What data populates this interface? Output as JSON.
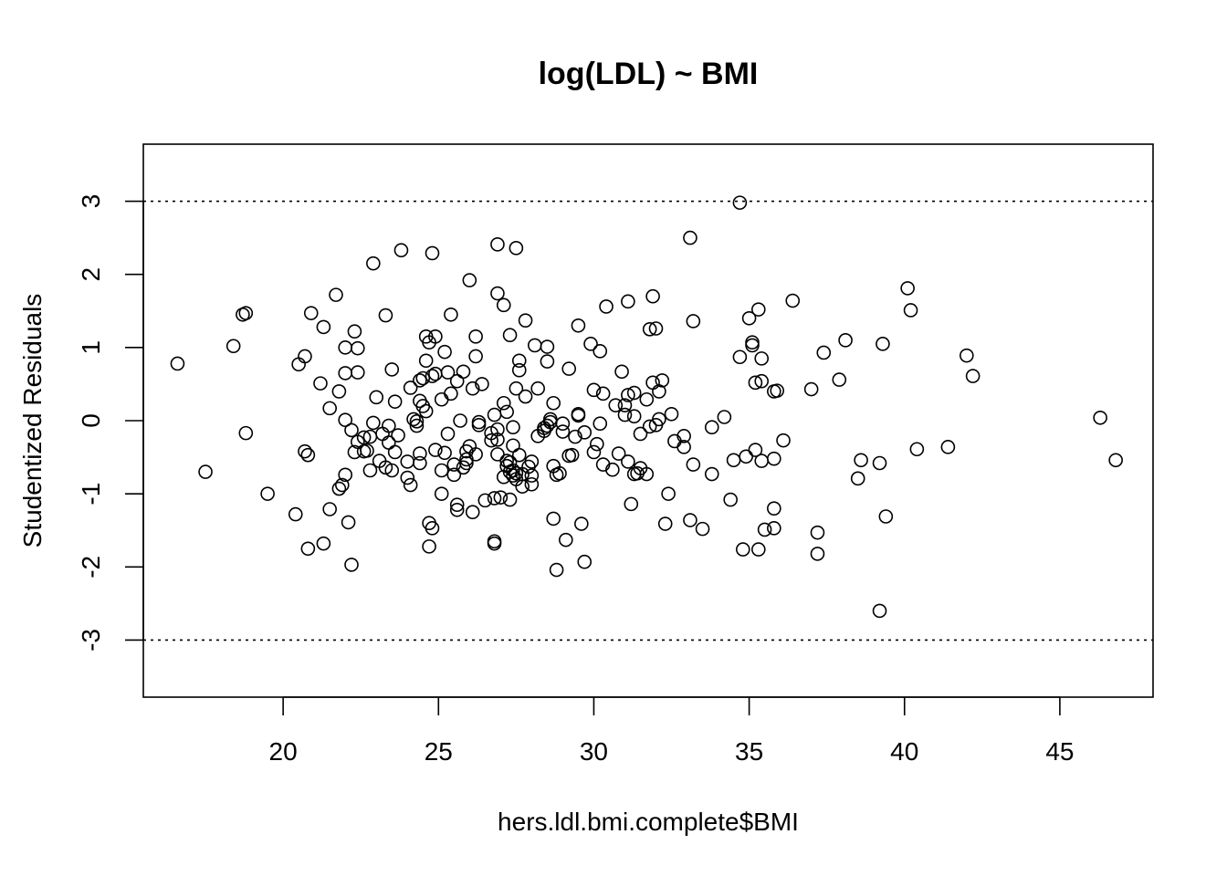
{
  "chart_data": {
    "type": "scatter",
    "title": "log(LDL) ~ BMI",
    "xlabel": "hers.ldl.bmi.complete$BMI",
    "ylabel": "Studentized Residuals",
    "xlim": [
      15.5,
      48.0
    ],
    "ylim": [
      -3.78,
      3.78
    ],
    "x_ticks": [
      20,
      25,
      30,
      35,
      40,
      45
    ],
    "y_ticks": [
      -3,
      -2,
      -1,
      0,
      1,
      2,
      3
    ],
    "reference_lines": [
      3,
      -3
    ],
    "grid": false,
    "marker": "open-circle",
    "points": [
      [
        16.6,
        0.78
      ],
      [
        17.5,
        -0.7
      ],
      [
        18.4,
        1.02
      ],
      [
        18.7,
        1.45
      ],
      [
        18.8,
        1.47
      ],
      [
        18.8,
        -0.17
      ],
      [
        19.5,
        -1.0
      ],
      [
        20.4,
        -1.28
      ],
      [
        20.5,
        0.77
      ],
      [
        20.7,
        0.88
      ],
      [
        20.7,
        -0.42
      ],
      [
        20.8,
        -0.47
      ],
      [
        20.8,
        -1.75
      ],
      [
        20.9,
        1.47
      ],
      [
        21.2,
        0.51
      ],
      [
        21.3,
        1.28
      ],
      [
        21.3,
        -1.68
      ],
      [
        21.5,
        0.17
      ],
      [
        21.5,
        -1.21
      ],
      [
        21.7,
        1.72
      ],
      [
        21.8,
        0.4
      ],
      [
        21.8,
        -0.93
      ],
      [
        21.9,
        -0.88
      ],
      [
        22.0,
        1.0
      ],
      [
        22.0,
        0.65
      ],
      [
        22.0,
        0.01
      ],
      [
        22.0,
        -0.74
      ],
      [
        22.1,
        -1.39
      ],
      [
        22.2,
        -0.13
      ],
      [
        22.2,
        -1.97
      ],
      [
        22.3,
        1.22
      ],
      [
        22.3,
        -0.43
      ],
      [
        22.4,
        0.99
      ],
      [
        22.4,
        0.66
      ],
      [
        22.4,
        -0.29
      ],
      [
        22.6,
        -0.23
      ],
      [
        22.6,
        -0.42
      ],
      [
        22.7,
        -0.41
      ],
      [
        22.8,
        -0.22
      ],
      [
        22.8,
        -0.68
      ],
      [
        22.9,
        2.15
      ],
      [
        22.9,
        -0.03
      ],
      [
        23.0,
        0.32
      ],
      [
        23.1,
        -0.55
      ],
      [
        23.2,
        -0.18
      ],
      [
        23.3,
        -0.64
      ],
      [
        23.3,
        1.44
      ],
      [
        23.4,
        -0.3
      ],
      [
        23.4,
        -0.07
      ],
      [
        23.5,
        0.7
      ],
      [
        23.5,
        -0.68
      ],
      [
        23.6,
        -0.43
      ],
      [
        23.6,
        0.26
      ],
      [
        23.7,
        -0.2
      ],
      [
        23.8,
        2.33
      ],
      [
        24.0,
        -0.78
      ],
      [
        24.0,
        -0.56
      ],
      [
        24.1,
        0.45
      ],
      [
        24.1,
        -0.88
      ],
      [
        24.2,
        0.02
      ],
      [
        24.3,
        -0.01
      ],
      [
        24.3,
        -0.07
      ],
      [
        24.4,
        0.55
      ],
      [
        24.4,
        -0.45
      ],
      [
        24.4,
        -0.58
      ],
      [
        24.4,
        0.27
      ],
      [
        24.5,
        0.58
      ],
      [
        24.5,
        0.2
      ],
      [
        24.6,
        0.82
      ],
      [
        24.6,
        0.13
      ],
      [
        24.6,
        1.15
      ],
      [
        24.7,
        1.07
      ],
      [
        24.7,
        -1.4
      ],
      [
        24.7,
        -1.72
      ],
      [
        24.8,
        2.29
      ],
      [
        24.8,
        -1.47
      ],
      [
        24.8,
        0.61
      ],
      [
        24.9,
        -0.4
      ],
      [
        24.9,
        1.15
      ],
      [
        24.9,
        0.64
      ],
      [
        25.1,
        0.29
      ],
      [
        25.1,
        -0.68
      ],
      [
        25.1,
        -1.0
      ],
      [
        25.2,
        0.94
      ],
      [
        25.2,
        -0.44
      ],
      [
        25.3,
        -0.18
      ],
      [
        25.3,
        0.66
      ],
      [
        25.4,
        1.45
      ],
      [
        25.4,
        0.37
      ],
      [
        25.5,
        -0.6
      ],
      [
        25.5,
        -0.74
      ],
      [
        25.6,
        0.54
      ],
      [
        25.6,
        -1.15
      ],
      [
        25.6,
        -1.22
      ],
      [
        25.7,
        0.0
      ],
      [
        25.8,
        0.67
      ],
      [
        25.8,
        -0.64
      ],
      [
        25.9,
        -0.42
      ],
      [
        25.9,
        -0.58
      ],
      [
        25.9,
        -0.53
      ],
      [
        26.0,
        -0.35
      ],
      [
        26.0,
        1.92
      ],
      [
        26.1,
        0.44
      ],
      [
        26.1,
        -1.25
      ],
      [
        26.2,
        0.88
      ],
      [
        26.2,
        -0.46
      ],
      [
        26.2,
        1.15
      ],
      [
        26.3,
        -0.06
      ],
      [
        26.3,
        -0.02
      ],
      [
        26.4,
        0.5
      ],
      [
        26.5,
        -1.09
      ],
      [
        26.7,
        -0.17
      ],
      [
        26.7,
        -0.27
      ],
      [
        26.8,
        0.08
      ],
      [
        26.8,
        -1.68
      ],
      [
        26.8,
        -1.65
      ],
      [
        26.8,
        -1.06
      ],
      [
        26.9,
        2.41
      ],
      [
        26.9,
        1.74
      ],
      [
        26.9,
        -0.46
      ],
      [
        26.9,
        -0.12
      ],
      [
        26.9,
        -0.26
      ],
      [
        27.0,
        -1.05
      ],
      [
        27.1,
        1.58
      ],
      [
        27.1,
        0.24
      ],
      [
        27.1,
        -0.77
      ],
      [
        27.2,
        -0.55
      ],
      [
        27.2,
        0.12
      ],
      [
        27.2,
        -0.62
      ],
      [
        27.3,
        1.17
      ],
      [
        27.3,
        -1.08
      ],
      [
        27.3,
        -0.57
      ],
      [
        27.3,
        -0.7
      ],
      [
        27.4,
        -0.34
      ],
      [
        27.4,
        -0.75
      ],
      [
        27.4,
        -0.68
      ],
      [
        27.4,
        -0.09
      ],
      [
        27.5,
        -0.72
      ],
      [
        27.5,
        -0.8
      ],
      [
        27.5,
        0.44
      ],
      [
        27.5,
        2.36
      ],
      [
        27.6,
        0.82
      ],
      [
        27.6,
        0.69
      ],
      [
        27.6,
        -0.47
      ],
      [
        27.7,
        -0.73
      ],
      [
        27.7,
        -0.9
      ],
      [
        27.8,
        0.33
      ],
      [
        27.8,
        1.37
      ],
      [
        27.9,
        -0.63
      ],
      [
        28.0,
        -0.56
      ],
      [
        28.0,
        -0.75
      ],
      [
        28.0,
        -0.87
      ],
      [
        28.1,
        1.03
      ],
      [
        28.2,
        0.44
      ],
      [
        28.2,
        -0.21
      ],
      [
        28.4,
        -0.1
      ],
      [
        28.4,
        -0.14
      ],
      [
        28.5,
        1.01
      ],
      [
        28.5,
        0.81
      ],
      [
        28.5,
        -0.07
      ],
      [
        28.6,
        -0.02
      ],
      [
        28.6,
        0.02
      ],
      [
        28.7,
        0.24
      ],
      [
        28.7,
        -0.62
      ],
      [
        28.7,
        -1.34
      ],
      [
        28.8,
        -0.74
      ],
      [
        28.8,
        -2.04
      ],
      [
        28.9,
        -0.72
      ],
      [
        29.0,
        -0.04
      ],
      [
        29.0,
        -0.15
      ],
      [
        29.1,
        -1.63
      ],
      [
        29.2,
        -0.48
      ],
      [
        29.2,
        0.71
      ],
      [
        29.3,
        -0.47
      ],
      [
        29.4,
        -0.22
      ],
      [
        29.5,
        0.07
      ],
      [
        29.5,
        0.09
      ],
      [
        29.5,
        1.3
      ],
      [
        29.6,
        -1.41
      ],
      [
        29.7,
        -1.93
      ],
      [
        29.7,
        -0.16
      ],
      [
        29.9,
        1.05
      ],
      [
        30.0,
        0.42
      ],
      [
        30.0,
        -0.43
      ],
      [
        30.1,
        -0.32
      ],
      [
        30.2,
        0.95
      ],
      [
        30.2,
        -0.04
      ],
      [
        30.3,
        0.37
      ],
      [
        30.3,
        -0.6
      ],
      [
        30.4,
        1.56
      ],
      [
        30.6,
        -0.67
      ],
      [
        30.7,
        0.21
      ],
      [
        30.8,
        -0.45
      ],
      [
        30.9,
        0.67
      ],
      [
        31.0,
        0.08
      ],
      [
        31.0,
        0.21
      ],
      [
        31.1,
        1.63
      ],
      [
        31.1,
        -0.56
      ],
      [
        31.1,
        0.35
      ],
      [
        31.2,
        -1.14
      ],
      [
        31.3,
        -0.73
      ],
      [
        31.3,
        0.06
      ],
      [
        31.3,
        0.38
      ],
      [
        31.4,
        -0.72
      ],
      [
        31.5,
        -0.65
      ],
      [
        31.5,
        -0.18
      ],
      [
        31.7,
        -0.73
      ],
      [
        31.7,
        0.29
      ],
      [
        31.8,
        1.25
      ],
      [
        31.8,
        -0.08
      ],
      [
        31.9,
        0.52
      ],
      [
        31.9,
        1.7
      ],
      [
        32.0,
        -0.06
      ],
      [
        32.0,
        1.26
      ],
      [
        32.1,
        0.4
      ],
      [
        32.1,
        0.02
      ],
      [
        32.2,
        0.55
      ],
      [
        32.3,
        -1.41
      ],
      [
        32.4,
        -1.0
      ],
      [
        32.5,
        0.09
      ],
      [
        32.6,
        -0.28
      ],
      [
        32.9,
        -0.21
      ],
      [
        32.9,
        -0.36
      ],
      [
        33.1,
        2.5
      ],
      [
        33.1,
        -1.36
      ],
      [
        33.2,
        1.36
      ],
      [
        33.2,
        -0.6
      ],
      [
        33.5,
        -1.48
      ],
      [
        33.8,
        -0.09
      ],
      [
        33.8,
        -0.73
      ],
      [
        34.2,
        0.05
      ],
      [
        34.4,
        -1.08
      ],
      [
        34.5,
        -0.54
      ],
      [
        34.7,
        2.98
      ],
      [
        34.7,
        0.87
      ],
      [
        34.8,
        -1.76
      ],
      [
        34.9,
        -0.49
      ],
      [
        35.0,
        1.4
      ],
      [
        35.1,
        1.07
      ],
      [
        35.1,
        1.03
      ],
      [
        35.2,
        -0.4
      ],
      [
        35.2,
        0.52
      ],
      [
        35.3,
        1.52
      ],
      [
        35.3,
        -1.76
      ],
      [
        35.4,
        -0.55
      ],
      [
        35.4,
        0.54
      ],
      [
        35.4,
        0.85
      ],
      [
        35.5,
        -1.49
      ],
      [
        35.8,
        -1.2
      ],
      [
        35.8,
        -1.47
      ],
      [
        35.8,
        -0.52
      ],
      [
        35.8,
        0.4
      ],
      [
        35.9,
        0.41
      ],
      [
        36.1,
        -0.27
      ],
      [
        36.4,
        1.64
      ],
      [
        37.0,
        0.43
      ],
      [
        37.2,
        -1.53
      ],
      [
        37.2,
        -1.82
      ],
      [
        37.4,
        0.93
      ],
      [
        37.9,
        0.56
      ],
      [
        38.1,
        1.1
      ],
      [
        38.5,
        -0.79
      ],
      [
        38.6,
        -0.54
      ],
      [
        39.2,
        -2.6
      ],
      [
        39.2,
        -0.58
      ],
      [
        39.3,
        1.05
      ],
      [
        39.4,
        -1.31
      ],
      [
        40.1,
        1.81
      ],
      [
        40.2,
        1.51
      ],
      [
        40.4,
        -0.39
      ],
      [
        41.4,
        -0.36
      ],
      [
        42.0,
        0.89
      ],
      [
        42.2,
        0.61
      ],
      [
        46.3,
        0.04
      ],
      [
        46.8,
        -0.54
      ]
    ]
  }
}
